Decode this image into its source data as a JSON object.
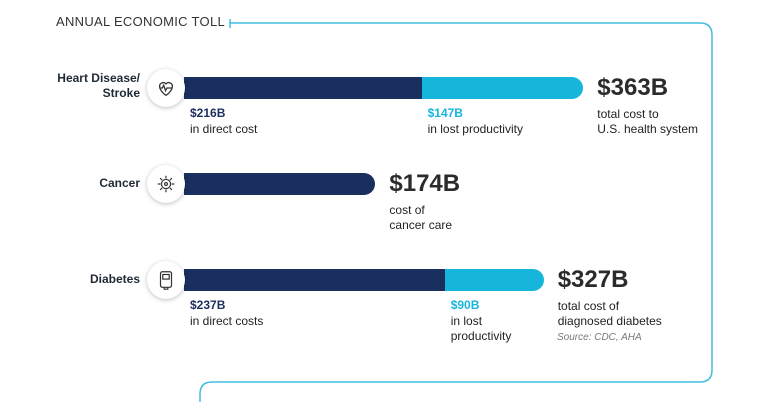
{
  "title": "ANNUAL ECONOMIC TOLL",
  "source": "Source: CDC, AHA",
  "colors": {
    "direct": "#1b2f5e",
    "lost": "#16b6dc",
    "frame": "#40bde0"
  },
  "chart_data": {
    "type": "bar",
    "orientation": "horizontal",
    "stacked": true,
    "unit": "$B",
    "categories": [
      {
        "name": "Heart Disease/\nStroke",
        "icon": "heart-pulse-icon",
        "total": 363,
        "total_label": "$363B",
        "total_text": "total cost to\nU.S. health system",
        "segments": [
          {
            "value": 216,
            "amount_label": "$216B",
            "text": "in direct cost",
            "kind": "direct"
          },
          {
            "value": 147,
            "amount_label": "$147B",
            "text": "in lost productivity",
            "kind": "lost"
          }
        ]
      },
      {
        "name": "Cancer",
        "icon": "cancer-cell-icon",
        "total": 174,
        "total_label": "$174B",
        "total_text": "cost of\ncancer care",
        "segments": [
          {
            "value": 174,
            "amount_label": "",
            "text": "",
            "kind": "direct"
          }
        ]
      },
      {
        "name": "Diabetes",
        "icon": "glucose-meter-icon",
        "total": 327,
        "total_label": "$327B",
        "total_text": "total cost of\ndiagnosed diabetes",
        "segments": [
          {
            "value": 237,
            "amount_label": "$237B",
            "text": "in direct costs",
            "kind": "direct"
          },
          {
            "value": 90,
            "amount_label": "$90B",
            "text": "in lost\nproductivity",
            "kind": "lost"
          }
        ]
      }
    ]
  }
}
